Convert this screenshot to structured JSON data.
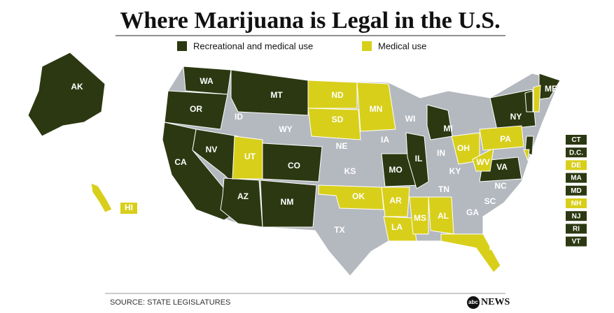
{
  "title": "Where Marijuana is Legal in the U.S.",
  "legend": [
    {
      "label": "Recreational and medical use",
      "color": "#2c3811"
    },
    {
      "label": "Medical use",
      "color": "#d8cf1b"
    }
  ],
  "base_color": "#b4b8bf",
  "states": {
    "recreational": [
      "AK",
      "WA",
      "OR",
      "CA",
      "NV",
      "MT",
      "CO",
      "AZ",
      "NM",
      "MO",
      "IL",
      "MI",
      "NY",
      "VA",
      "ME"
    ],
    "medical": [
      "ND",
      "SD",
      "MN",
      "UT",
      "OK",
      "AR",
      "LA",
      "MS",
      "AL",
      "FL",
      "OH",
      "WV",
      "PA",
      "HI"
    ],
    "none": [
      "ID",
      "WY",
      "NE",
      "KS",
      "TX",
      "IA",
      "WI",
      "IN",
      "KY",
      "TN",
      "NC",
      "SC",
      "GA"
    ]
  },
  "small_states": {
    "recreational": [
      "CT",
      "D.C.",
      "MA",
      "MD",
      "NJ",
      "RI",
      "VT"
    ],
    "medical": [
      "DE",
      "NH"
    ]
  },
  "source": "SOURCE: STATE LEGISLATURES",
  "logo": {
    "mark": "abc",
    "text": "NEWS"
  }
}
